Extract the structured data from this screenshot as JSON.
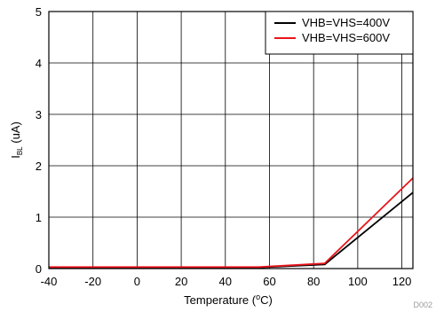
{
  "chart_data": {
    "type": "line",
    "xlabel_prefix": "Temperature (",
    "xlabel_sup": "o",
    "xlabel_suffix": "C)",
    "ylabel_main": "I",
    "ylabel_sub": "BL",
    "ylabel_suffix": " (uA)",
    "xlim": [
      -40,
      125
    ],
    "ylim": [
      0,
      5
    ],
    "x_ticks": [
      -40,
      -20,
      0,
      20,
      40,
      60,
      80,
      100,
      120
    ],
    "y_ticks": [
      0,
      1,
      2,
      3,
      4,
      5
    ],
    "grid": true,
    "legend_position": "top-right",
    "series": [
      {
        "name": "VHB=VHS=400V",
        "color": "#000000",
        "x": [
          -40,
          55,
          85,
          125
        ],
        "y": [
          0.02,
          0.02,
          0.08,
          1.48
        ]
      },
      {
        "name": "VHB=VHS=600V",
        "color": "#e8141c",
        "x": [
          -40,
          55,
          85,
          125
        ],
        "y": [
          0.03,
          0.03,
          0.1,
          1.76
        ]
      }
    ],
    "watermark": "D002"
  }
}
